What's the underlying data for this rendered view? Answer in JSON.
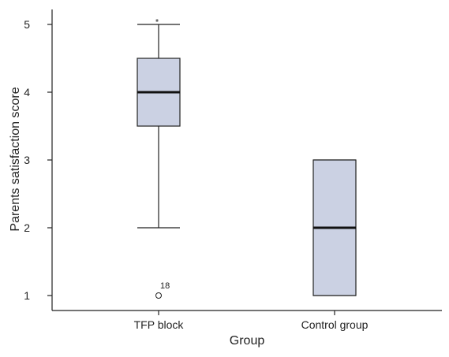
{
  "chart_data": {
    "type": "box",
    "title": "",
    "xlabel": "Group",
    "ylabel": "Parents satisfaction score",
    "categories": [
      "TFP block",
      "Control group"
    ],
    "ylim": [
      0.6,
      5.25
    ],
    "yticks": [
      "1",
      "2",
      "3",
      "4",
      "5"
    ],
    "grid": false,
    "legend": "none",
    "box_color": "#CBD1E3",
    "box_stroke": "#222222",
    "boxes": [
      {
        "category": "TFP block",
        "whisker_low": 2,
        "q1": 3.5,
        "median": 4,
        "q3": 4.5,
        "whisker_high": 5,
        "outliers": [
          {
            "value": 1,
            "marker": "circle",
            "label": "18"
          },
          {
            "value": 5.1,
            "marker": "*",
            "label": ""
          }
        ]
      },
      {
        "category": "Control group",
        "whisker_low": 1,
        "q1": 1,
        "median": 2,
        "q3": 3,
        "whisker_high": 3,
        "outliers": []
      }
    ]
  }
}
